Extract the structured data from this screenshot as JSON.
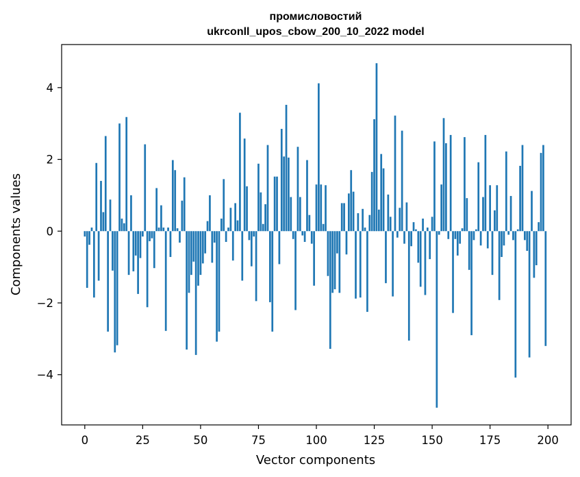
{
  "chart_data": {
    "type": "bar",
    "title_line1": "промисловостий",
    "title_line2": "ukrconll_upos_cbow_200_10_2022 model",
    "xlabel": "Vector components",
    "ylabel": "Components values",
    "xlim": [
      -10,
      210
    ],
    "ylim": [
      -5.4,
      5.2
    ],
    "xticks": [
      0,
      25,
      50,
      75,
      100,
      125,
      150,
      175,
      200
    ],
    "yticks": [
      -4,
      -2,
      0,
      2,
      4
    ],
    "ytick_labels": [
      "−4",
      "−2",
      "0",
      "2",
      "4"
    ],
    "bar_color": "#1f77b4",
    "grid": false,
    "values": [
      -0.15,
      -1.58,
      -0.38,
      0.1,
      -1.85,
      1.9,
      -1.38,
      1.4,
      0.53,
      2.65,
      -2.8,
      0.88,
      -1.1,
      -3.38,
      -3.18,
      3.0,
      0.35,
      0.22,
      3.18,
      -1.22,
      1.0,
      -1.12,
      -0.68,
      -1.75,
      -0.75,
      -0.15,
      2.42,
      -2.12,
      -0.28,
      -0.2,
      -1.03,
      1.2,
      0.1,
      0.72,
      0.1,
      -2.78,
      0.1,
      -0.72,
      1.98,
      1.7,
      0.08,
      -0.32,
      0.85,
      1.5,
      -3.3,
      -1.72,
      -1.22,
      -0.85,
      -3.45,
      -1.52,
      -1.22,
      -0.9,
      -0.62,
      0.28,
      1.0,
      -0.88,
      -0.32,
      -3.08,
      -2.8,
      0.35,
      1.45,
      -0.3,
      0.1,
      0.65,
      -0.82,
      0.78,
      0.3,
      3.3,
      -1.38,
      2.58,
      1.25,
      -0.25,
      -0.98,
      -0.15,
      -1.95,
      1.88,
      1.08,
      0.2,
      0.75,
      2.4,
      -1.98,
      -2.8,
      1.52,
      1.52,
      -0.92,
      2.85,
      2.08,
      3.52,
      2.05,
      0.95,
      -0.22,
      -2.2,
      2.35,
      0.95,
      -0.12,
      -0.3,
      1.98,
      0.45,
      -0.35,
      -1.52,
      1.3,
      4.12,
      1.3,
      0.2,
      1.28,
      -1.25,
      -3.28,
      -1.72,
      -1.62,
      -0.62,
      -1.72,
      0.78,
      0.78,
      -0.65,
      1.05,
      1.7,
      1.1,
      -1.88,
      0.5,
      -1.85,
      0.62,
      0.1,
      -2.25,
      0.45,
      1.65,
      3.12,
      4.68,
      0.6,
      2.15,
      1.75,
      -1.45,
      1.02,
      0.4,
      -1.82,
      3.22,
      -0.18,
      0.65,
      2.8,
      -0.35,
      0.8,
      -3.05,
      -0.42,
      0.25,
      0.05,
      -0.88,
      -1.55,
      0.35,
      -1.78,
      0.1,
      -0.78,
      0.4,
      2.5,
      -4.92,
      -0.1,
      1.3,
      3.15,
      2.45,
      -0.22,
      2.68,
      -2.28,
      -0.22,
      -0.68,
      -0.35,
      0.08,
      2.62,
      0.92,
      -1.08,
      -2.9,
      -0.25,
      0.05,
      1.92,
      -0.4,
      0.95,
      2.68,
      -0.48,
      1.28,
      -1.22,
      0.58,
      1.28,
      -1.92,
      -0.72,
      -0.4,
      2.22,
      -0.1,
      0.98,
      -0.25,
      -4.08,
      0.05,
      1.82,
      2.4,
      -0.25,
      -0.55,
      -3.52,
      1.12,
      -1.3,
      -0.95,
      0.25,
      2.18,
      2.4,
      -3.2
    ]
  }
}
